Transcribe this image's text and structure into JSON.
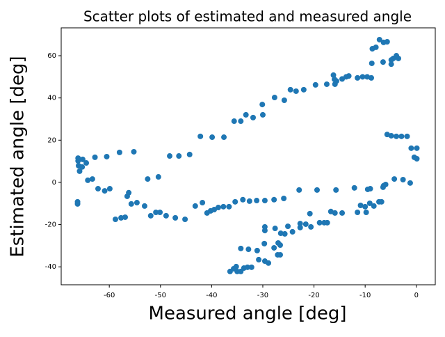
{
  "chart_data": {
    "type": "scatter",
    "title": "Scatter plots of estimated and measured angle",
    "x_label": "Measured angle [deg]",
    "y_label": "Estimated angle [deg]",
    "color": "#1f77b4",
    "xlim": [
      -69.4,
      3.7
    ],
    "ylim": [
      -48.5,
      73.2
    ],
    "xticks": [
      -60,
      -50,
      -40,
      -30,
      -20,
      -10,
      0
    ],
    "yticks": [
      -40,
      -20,
      0,
      20,
      40,
      60
    ],
    "x": [
      -7.2,
      -6.4,
      -5.7,
      -7.9,
      -8.6,
      -6.5,
      -8.7,
      -4.9,
      -4.9,
      -3.9,
      -3.5,
      -4.5,
      -8.8,
      -9.6,
      -10.5,
      -11.5,
      -13.2,
      -13.7,
      -14.5,
      -15.6,
      -16.2,
      -16.0,
      -15.9,
      -17.5,
      -19.7,
      -22.0,
      -23.5,
      -24.6,
      -25.8,
      -27.7,
      -30.1,
      -30.0,
      -31.9,
      -33.3,
      -34.3,
      -35.6,
      -37.6,
      -39.9,
      -42.2,
      -44.3,
      -46.4,
      -48.2,
      -55.2,
      -58.0,
      -60.5,
      -62.8,
      -64.5,
      -65.2,
      -66.1,
      -66.1,
      -66.0,
      -65.3,
      -65.8,
      -64.2,
      -63.3,
      -62.2,
      -60.9,
      -59.9,
      -66.2,
      -66.2,
      -58.8,
      -57.7,
      -56.9,
      -56.5,
      -56.2,
      -55.7,
      -54.6,
      -53.1,
      -52.5,
      -50.4,
      -51.9,
      -50.9,
      -50.1,
      -48.9,
      -47.1,
      -45.2,
      -43.2,
      -41.8,
      -40.9,
      -40.2,
      -39.5,
      -38.7,
      -37.7,
      -36.6,
      -35.4,
      -33.9,
      -32.6,
      -31.2,
      -29.6,
      -27.8,
      -25.9,
      -22.9,
      -19.4,
      -15.7,
      -12.1,
      -9.5,
      -36.4,
      -35.7,
      -35.2,
      -35.0,
      -34.3,
      -33.7,
      -33.0,
      -32.2,
      -34.3,
      -32.8,
      -31.1,
      -30.8,
      -29.6,
      -28.9,
      -29.7,
      -29.6,
      -29.6,
      -27.8,
      -27.1,
      -26.6,
      -27.0,
      -26.6,
      -27.6,
      -26.5,
      -25.7,
      -25.1,
      -24.2,
      -22.7,
      -22.7,
      -21.6,
      -20.6,
      -20.8,
      -18.9,
      -18.0,
      -17.4,
      -16.7,
      -15.9,
      -14.5,
      -11.5,
      -10.9,
      -10.0,
      -9.8,
      -9.1,
      -8.3,
      -7.3,
      -6.8,
      -6.4,
      -6.0,
      -6.5,
      -4.3,
      -2.6,
      -1.2,
      -9.0,
      -5.7,
      -4.9,
      -3.9,
      -2.9,
      -1.8,
      -1.0,
      0.1,
      -0.4,
      0.1
    ],
    "y": [
      67.6,
      66.3,
      66.6,
      64.0,
      63.3,
      57.0,
      56.4,
      58.0,
      56.0,
      60.0,
      58.7,
      58.7,
      49.5,
      50.0,
      50.0,
      49.5,
      50.4,
      50.0,
      49.0,
      48.0,
      50.8,
      48.8,
      46.5,
      46.5,
      46.2,
      43.9,
      43.2,
      43.9,
      38.9,
      40.2,
      36.9,
      32.0,
      30.7,
      32.0,
      29.0,
      29.0,
      21.4,
      21.4,
      21.8,
      13.2,
      12.5,
      12.5,
      14.5,
      14.2,
      12.2,
      11.9,
      9.2,
      10.9,
      11.5,
      10.2,
      7.9,
      7.3,
      5.3,
      1.0,
      1.6,
      -3.0,
      -4.0,
      -3.0,
      -9.2,
      -10.2,
      -17.5,
      -16.8,
      -16.5,
      -6.6,
      -4.9,
      -10.2,
      -9.6,
      -11.2,
      1.6,
      2.6,
      -15.8,
      -14.2,
      -14.2,
      -15.8,
      -16.8,
      -17.5,
      -11.2,
      -9.6,
      -14.5,
      -13.5,
      -12.9,
      -11.9,
      -11.5,
      -11.5,
      -9.2,
      -8.2,
      -8.9,
      -8.6,
      -8.6,
      -8.2,
      -7.6,
      -3.6,
      -3.6,
      -3.6,
      -2.6,
      -3.3,
      -42.2,
      -40.9,
      -39.9,
      -42.2,
      -42.2,
      -40.6,
      -40.2,
      -40.2,
      -31.3,
      -31.7,
      -32.3,
      -36.6,
      -37.3,
      -38.2,
      -29.0,
      -22.8,
      -21.1,
      -31.0,
      -34.3,
      -34.3,
      -28.7,
      -29.7,
      -21.8,
      -24.1,
      -24.4,
      -20.8,
      -23.4,
      -21.4,
      -19.5,
      -19.8,
      -21.1,
      -14.8,
      -19.1,
      -19.1,
      -19.1,
      -13.8,
      -14.5,
      -14.5,
      -14.2,
      -10.9,
      -11.5,
      -14.2,
      -9.9,
      -11.2,
      -9.2,
      -9.2,
      -1.6,
      -1.0,
      -2.3,
      1.6,
      1.3,
      -0.3,
      -3.0,
      22.7,
      22.1,
      21.8,
      21.8,
      21.8,
      16.2,
      16.2,
      11.9,
      11.2
    ]
  }
}
